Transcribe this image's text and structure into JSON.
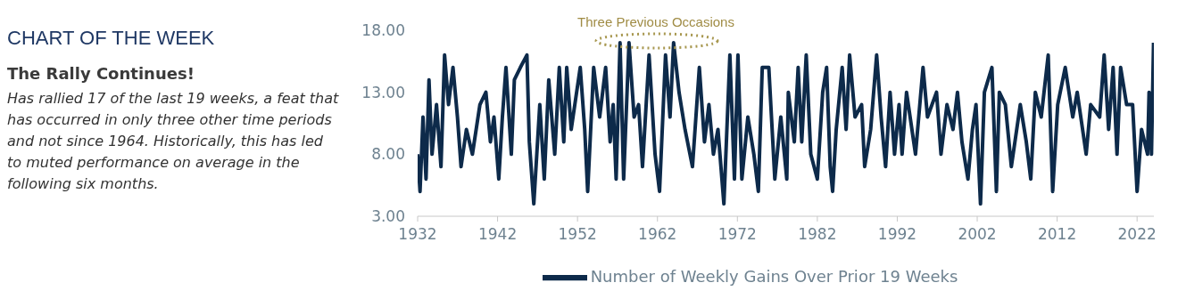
{
  "chart_data": {
    "type": "line",
    "title": "CHART OF THE WEEK",
    "subtitle": "The Rally Continues!",
    "annotations": [
      "Has rallied 17 of the last 19 weeks, a feat that has occurred in only three other time periods and not since 1964. Historically, this has led to muted performance on average in the following six months.",
      "Three Previous Occasions"
    ],
    "x": [
      1932,
      1932.3,
      1932.67,
      1933.05,
      1933.42,
      1933.8,
      1934.36,
      1934.92,
      1935.37,
      1935.86,
      1936.42,
      1936.98,
      1937.43,
      1938.1,
      1938.85,
      1939.79,
      1940.54,
      1941.1,
      1941.55,
      1942.15,
      1942.6,
      1943.05,
      1943.72,
      1944.1,
      1944.85,
      1945.67,
      1945.97,
      1946.53,
      1947.28,
      1947.84,
      1948.4,
      1949.15,
      1949.72,
      1950.28,
      1950.65,
      1951.21,
      1952.34,
      1952.9,
      1953.27,
      1954.02,
      1954.77,
      1955.52,
      1956.08,
      1956.46,
      1956.83,
      1957.32,
      1957.77,
      1958.44,
      1959.08,
      1959.64,
      1960.13,
      1960.95,
      1961.7,
      1962.26,
      1963.01,
      1963.57,
      1964.02,
      1964.7,
      1965.45,
      1966.38,
      1967.24,
      1967.88,
      1968.44,
      1969,
      1969.57,
      1970.31,
      1971.06,
      1971.63,
      1972.07,
      1972.56,
      1973.31,
      1974.06,
      1974.62,
      1975.11,
      1975.93,
      1976.68,
      1977.43,
      1978.18,
      1978.37,
      1979.12,
      1979.6,
      1980.05,
      1980.61,
      1981.18,
      1982,
      1982.67,
      1983.16,
      1983.61,
      1983.91,
      1984.36,
      1985.11,
      1985.6,
      1986.04,
      1986.72,
      1987.54,
      1987.92,
      1988.67,
      1989.42,
      1989.98,
      1990.54,
      1991.1,
      1991.66,
      1992.22,
      1992.6,
      1993.16,
      1994.28,
      1995.22,
      1995.78,
      1996.91,
      1997.47,
      1998.22,
      1998.97,
      1999.53,
      2000.09,
      2000.84,
      2001.4,
      2001.85,
      2002.41,
      2002.9,
      2003.84,
      2004.4,
      2004.77,
      2005.52,
      2006.27,
      2007.39,
      2008.14,
      2008.7,
      2009.27,
      2010.01,
      2010.88,
      2011.44,
      2012.07,
      2013.01,
      2013.95,
      2014.51,
      2015.63,
      2016.19,
      2017.32,
      2017.88,
      2018.44,
      2019,
      2019.49,
      2019.94,
      2020.69,
      2021.44,
      2022,
      2022.56,
      2023.31,
      2023.5,
      2023.8,
      2024.06
    ],
    "series": [
      {
        "name": "Number of Weekly Gains Over Prior 19 Weeks",
        "color": "#0d2a4a",
        "values": [
          8,
          5,
          11,
          6,
          14,
          8,
          12,
          7,
          16,
          12,
          15,
          11,
          7,
          10,
          8,
          12,
          13,
          9,
          11,
          6,
          11,
          15,
          8,
          14,
          15,
          16,
          9,
          4,
          12,
          6,
          14,
          8,
          15,
          9,
          15,
          10,
          15,
          10,
          5,
          15,
          11,
          15,
          9,
          12,
          6,
          17,
          6,
          17,
          11,
          12,
          7,
          16,
          8,
          5,
          16,
          11,
          17,
          13,
          10,
          7,
          15,
          9,
          12,
          8,
          10,
          4,
          16,
          6,
          16,
          6,
          11,
          8,
          5,
          15,
          15,
          6,
          11,
          6,
          13,
          9,
          15,
          9,
          16,
          8,
          6,
          13,
          15,
          7,
          5,
          10,
          15,
          10,
          16,
          11,
          12,
          7,
          10,
          16,
          11,
          7,
          13,
          8,
          12,
          8,
          13,
          8,
          15,
          11,
          13,
          8,
          12,
          10,
          13,
          9,
          6,
          10,
          12,
          4,
          13,
          15,
          5,
          13,
          12,
          7,
          12,
          9,
          6,
          13,
          11,
          16,
          5,
          12,
          15,
          11,
          13,
          8,
          12,
          11,
          16,
          10,
          15,
          8,
          15,
          12,
          12,
          5,
          10,
          8,
          13,
          8,
          17
        ]
      }
    ],
    "xlim": [
      1932,
      2024.1
    ],
    "xticks": [
      1932,
      1942,
      1952,
      1962,
      1972,
      1982,
      1992,
      2002,
      2012,
      2022
    ],
    "ylim": [
      3,
      18
    ],
    "yticks": [
      {
        "value": 3,
        "label": "3.00"
      },
      {
        "value": 8,
        "label": "8.00"
      },
      {
        "value": 13,
        "label": "13.00"
      },
      {
        "value": 18,
        "label": "18.00"
      }
    ],
    "grid": false,
    "legend": "bottom",
    "marker": "none",
    "line_style": "solid"
  }
}
